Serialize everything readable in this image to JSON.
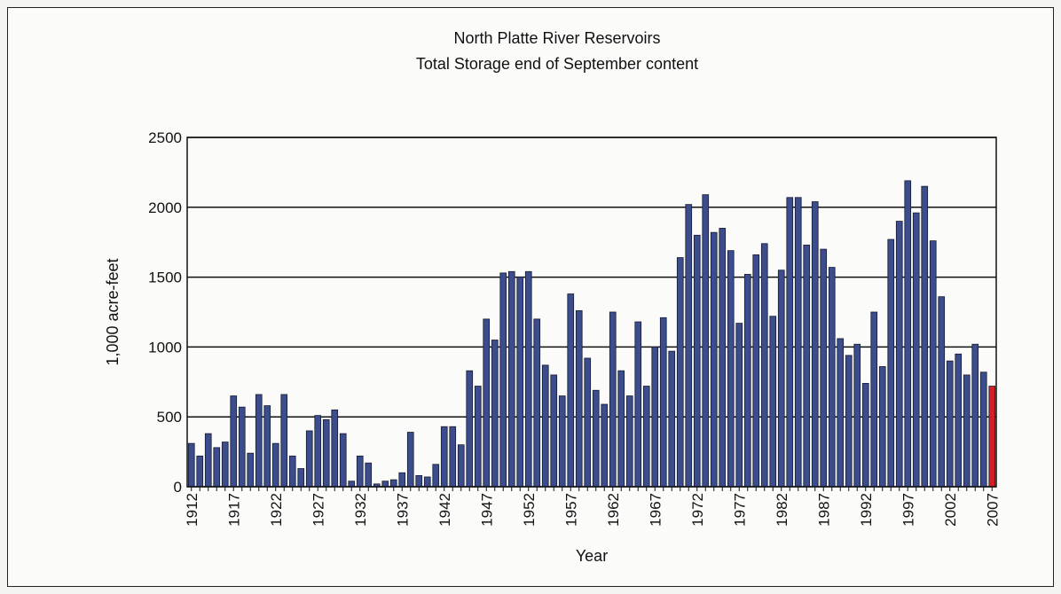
{
  "chart_data": {
    "type": "bar",
    "title": "North Platte River Reservoirs",
    "subtitle": "Total Storage end of September content",
    "xlabel": "Year",
    "ylabel": "1,000 acre-feet",
    "ylim": [
      0,
      2500
    ],
    "yticks": [
      0,
      500,
      1000,
      1500,
      2000,
      2500
    ],
    "xtick_labels": [
      "1912",
      "1917",
      "1922",
      "1927",
      "1932",
      "1937",
      "1942",
      "1947",
      "1952",
      "1957",
      "1962",
      "1967",
      "1972",
      "1977",
      "1982",
      "1987",
      "1992",
      "1997",
      "2002",
      "2007"
    ],
    "grid": "horizontal",
    "colors": {
      "bar": "#3b4d8c",
      "highlight": "#d42020",
      "edge": "#1a1a2e"
    },
    "highlight_category": "2007",
    "categories": [
      "1912",
      "1913",
      "1914",
      "1915",
      "1916",
      "1917",
      "1918",
      "1919",
      "1920",
      "1921",
      "1922",
      "1923",
      "1924",
      "1925",
      "1926",
      "1927",
      "1928",
      "1929",
      "1930",
      "1931",
      "1932",
      "1933",
      "1934",
      "1935",
      "1936",
      "1937",
      "1938",
      "1939",
      "1940",
      "1941",
      "1942",
      "1943",
      "1944",
      "1945",
      "1946",
      "1947",
      "1948",
      "1949",
      "1950",
      "1951",
      "1952",
      "1953",
      "1954",
      "1955",
      "1956",
      "1957",
      "1958",
      "1959",
      "1960",
      "1961",
      "1962",
      "1963",
      "1964",
      "1965",
      "1966",
      "1967",
      "1968",
      "1969",
      "1970",
      "1971",
      "1972",
      "1973",
      "1974",
      "1975",
      "1976",
      "1977",
      "1978",
      "1979",
      "1980",
      "1981",
      "1982",
      "1983",
      "1984",
      "1985",
      "1986",
      "1987",
      "1988",
      "1989",
      "1990",
      "1991",
      "1992",
      "1993",
      "1994",
      "1995",
      "1996",
      "1997",
      "1998",
      "1999",
      "2000",
      "2001",
      "2002",
      "2003",
      "2004",
      "2005",
      "2006",
      "2007"
    ],
    "values": [
      310,
      220,
      380,
      280,
      320,
      650,
      570,
      240,
      660,
      580,
      310,
      660,
      220,
      130,
      400,
      510,
      480,
      550,
      380,
      40,
      220,
      170,
      20,
      40,
      50,
      100,
      390,
      80,
      70,
      160,
      430,
      430,
      300,
      830,
      720,
      1200,
      1050,
      1530,
      1540,
      1500,
      1540,
      1200,
      870,
      800,
      650,
      1380,
      1260,
      920,
      690,
      590,
      1250,
      830,
      650,
      1180,
      720,
      1000,
      1210,
      970,
      1640,
      2020,
      1800,
      2090,
      1820,
      1850,
      1690,
      1170,
      1520,
      1660,
      1740,
      1220,
      1550,
      2070,
      2070,
      1730,
      2040,
      1700,
      1570,
      1060,
      940,
      1020,
      740,
      1250,
      860,
      1770,
      1900,
      2190,
      1960,
      2150,
      1760,
      1360,
      900,
      950,
      800,
      1020,
      820,
      720
    ]
  }
}
